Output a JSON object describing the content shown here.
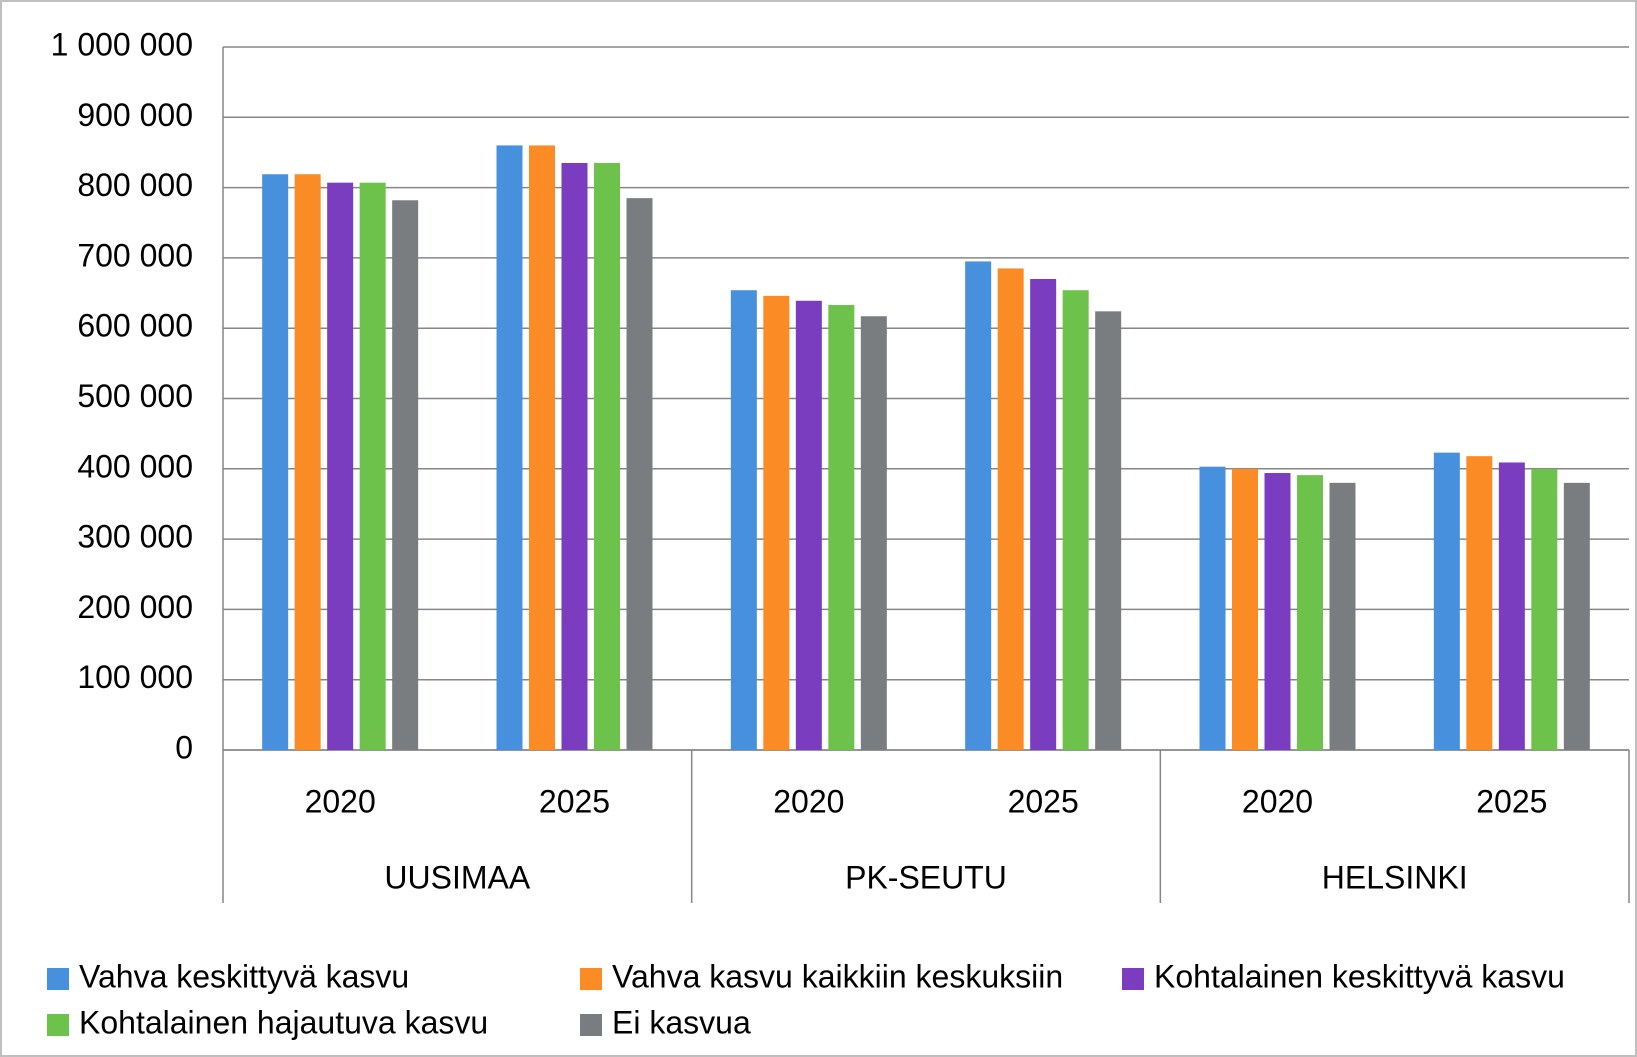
{
  "chart_data": {
    "type": "bar",
    "categories": [
      "2020",
      "2025",
      "2020",
      "2025",
      "2020",
      "2025"
    ],
    "groups": [
      "UUSIMAA",
      "PK-SEUTU",
      "HELSINKI"
    ],
    "series": [
      {
        "name": "Vahva keskittyvä kasvu",
        "color": "#4690de",
        "values": [
          819000,
          860000,
          654000,
          695000,
          403000,
          423000
        ]
      },
      {
        "name": "Vahva kasvu kaikkiin keskuksiin",
        "color": "#fb8b24",
        "values": [
          819000,
          860000,
          646000,
          685000,
          400000,
          418000
        ]
      },
      {
        "name": "Kohtalainen keskittyvä kasvu",
        "color": "#7a3dbf",
        "values": [
          807000,
          835000,
          639000,
          670000,
          394000,
          409000
        ]
      },
      {
        "name": "Kohtalainen hajautuva kasvu",
        "color": "#6cc24a",
        "values": [
          807000,
          835000,
          633000,
          654000,
          391000,
          400000
        ]
      },
      {
        "name": "Ei kasvua",
        "color": "#7a7d7f",
        "values": [
          782000,
          785000,
          617000,
          624000,
          380000,
          380000
        ]
      }
    ],
    "ylim": [
      0,
      1000000
    ],
    "yticks": [
      0,
      {
        "value": 100000,
        "label": "100 000"
      },
      {
        "value": 200000,
        "label": "200 000"
      },
      {
        "value": 300000,
        "label": "300 000"
      },
      {
        "value": 400000,
        "label": "400 000"
      },
      {
        "value": 500000,
        "label": "500 000"
      },
      {
        "value": 600000,
        "label": "600 000"
      },
      {
        "value": 700000,
        "label": "700 000"
      },
      {
        "value": 800000,
        "label": "800 000"
      },
      {
        "value": 900000,
        "label": "900 000"
      },
      {
        "value": 1000000,
        "label": "1 000 000"
      }
    ],
    "grid": true,
    "legend": "bottom"
  }
}
